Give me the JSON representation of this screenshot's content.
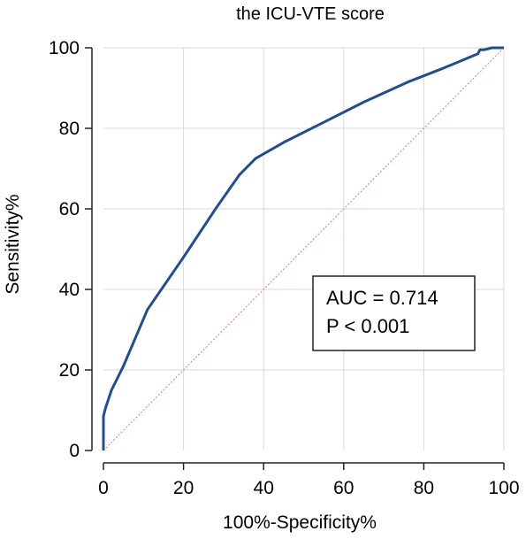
{
  "chart_data": {
    "type": "line",
    "title": "the ICU-VTE score",
    "xlabel": "100%-Specificity%",
    "ylabel": "Sensitivity%",
    "xlim": [
      0,
      100
    ],
    "ylim": [
      0,
      100
    ],
    "xticks": [
      0,
      20,
      40,
      60,
      80,
      100
    ],
    "yticks": [
      0,
      20,
      40,
      60,
      80,
      100
    ],
    "grid": true,
    "series": [
      {
        "color": "#1f4e96",
        "x": [
          0,
          0,
          0.5,
          2,
          5,
          11,
          20,
          28,
          34,
          38,
          45,
          55,
          65,
          76,
          85,
          93.5,
          94,
          95,
          97,
          100
        ],
        "y": [
          0,
          8.5,
          10.5,
          15,
          21,
          35,
          48,
          60,
          68.5,
          72.5,
          76.5,
          81.5,
          86.5,
          91.5,
          95,
          98.5,
          99.5,
          99.5,
          100,
          100
        ]
      }
    ],
    "reference_line": {
      "color": "#e07a7a",
      "x": [
        0,
        100
      ],
      "y": [
        0,
        100
      ]
    },
    "annotation": {
      "lines": [
        "AUC = 0.714",
        "P < 0.001"
      ],
      "position": "lower-right"
    }
  }
}
